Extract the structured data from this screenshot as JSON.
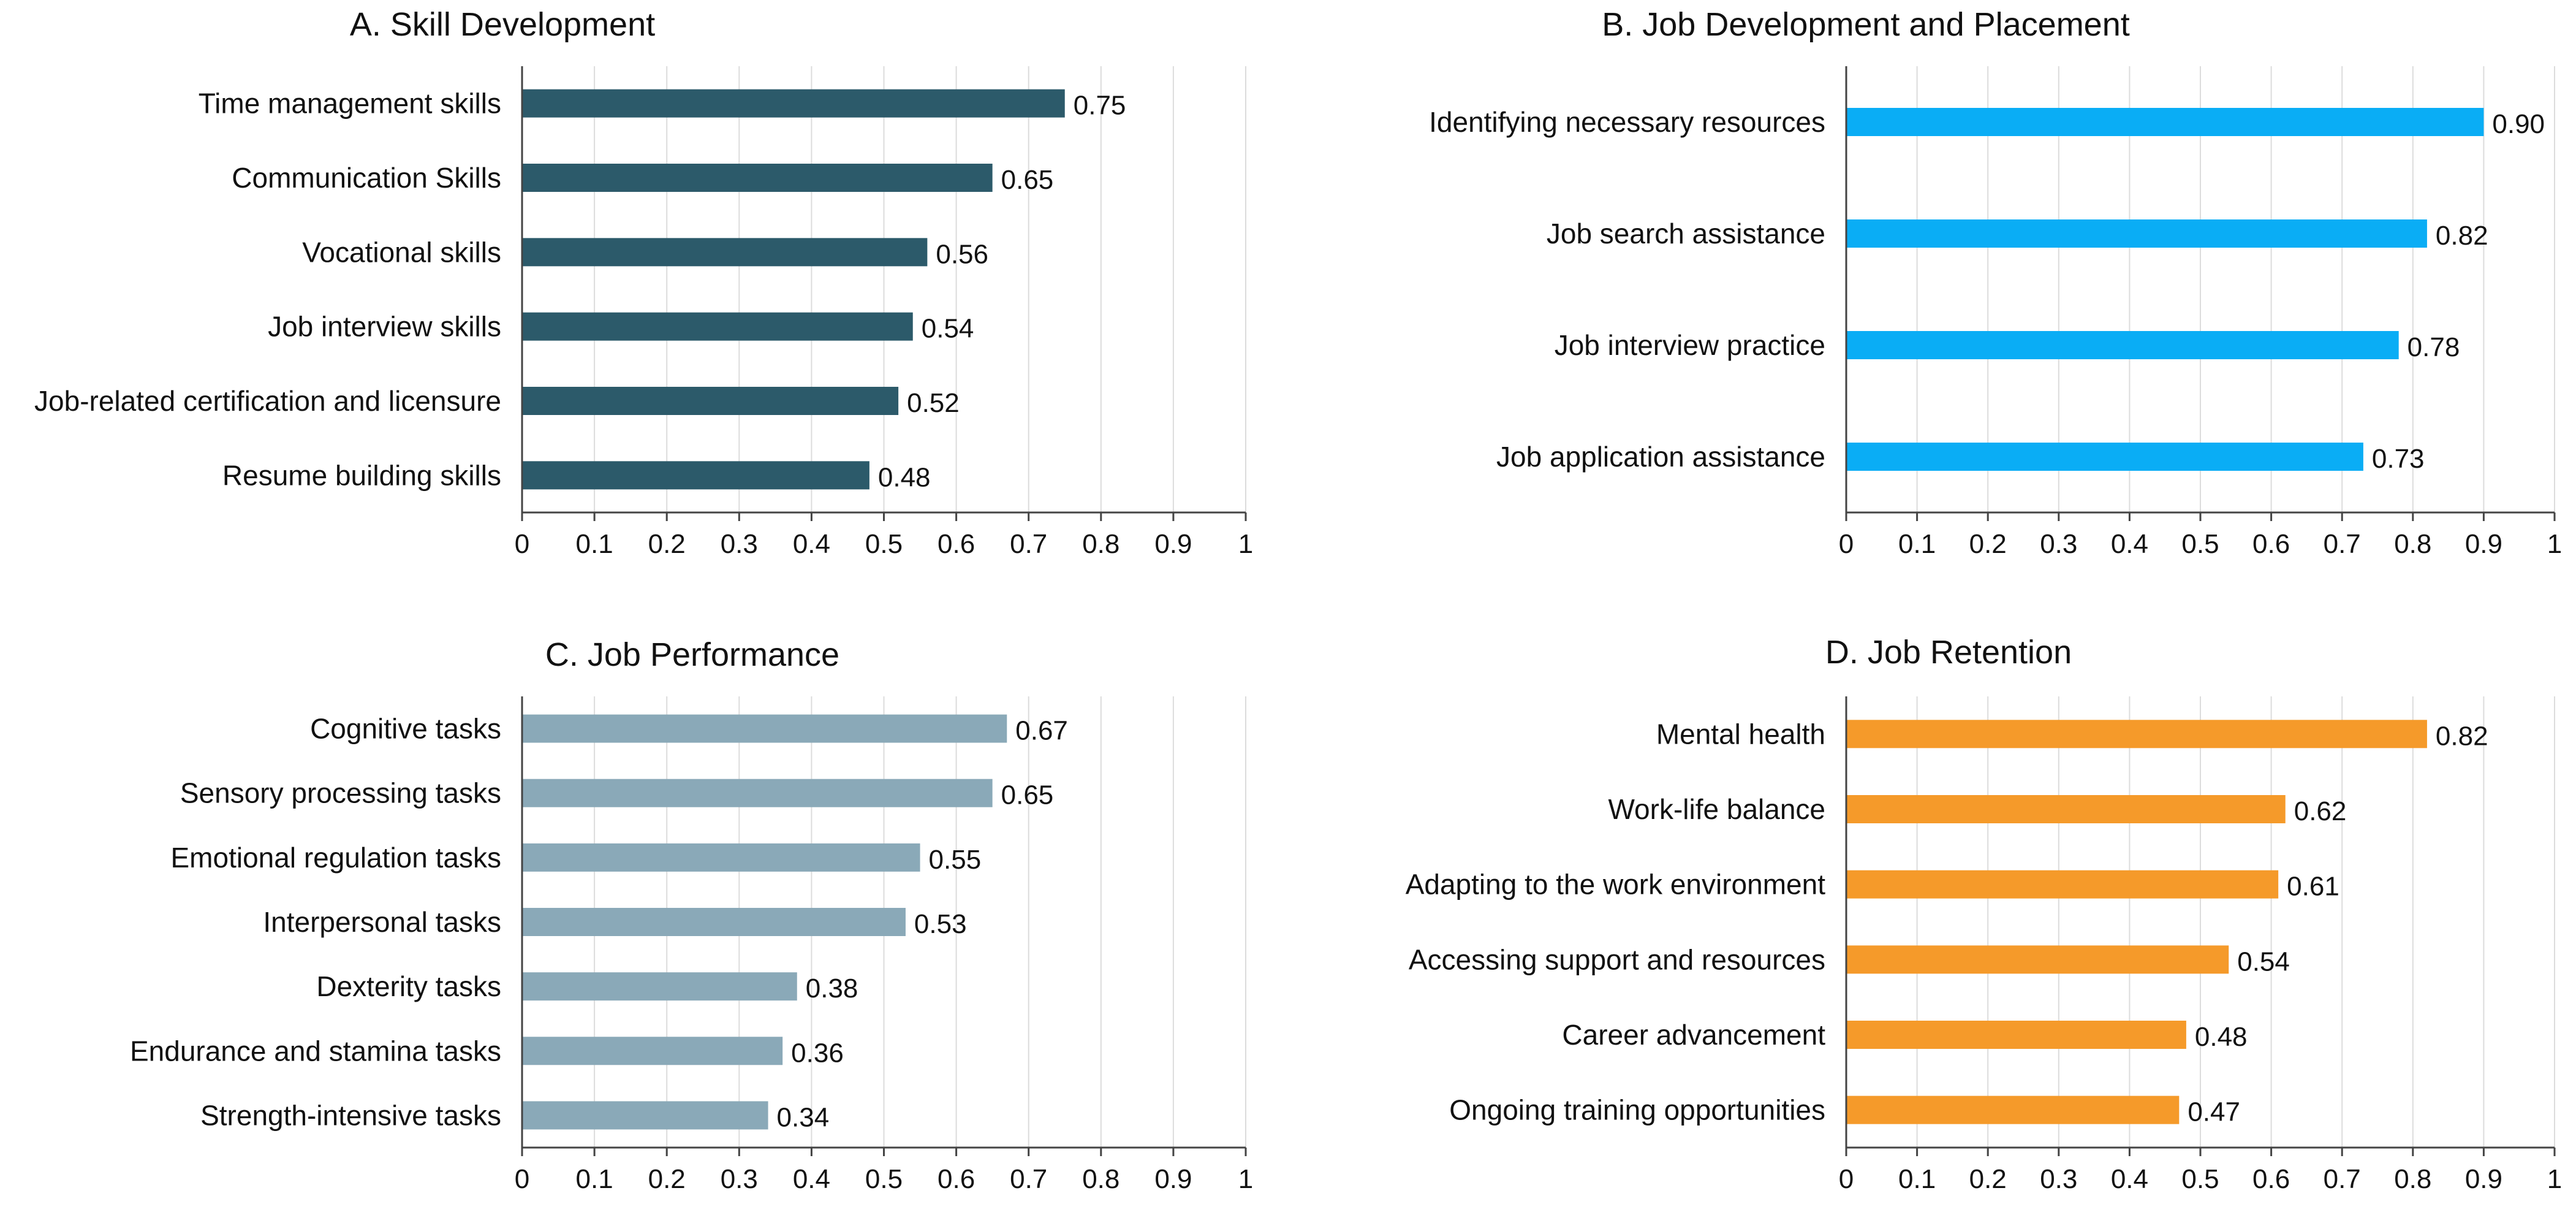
{
  "chart_data": [
    {
      "type": "bar",
      "orientation": "horizontal",
      "title": "A. Skill Development",
      "categories": [
        "Time management skills",
        "Communication Skills",
        "Vocational skills",
        "Job interview skills",
        "Job-related certification and licensure",
        "Resume building skills"
      ],
      "values": [
        0.75,
        0.65,
        0.56,
        0.54,
        0.52,
        0.48
      ],
      "value_labels": [
        "0.75",
        "0.65",
        "0.56",
        "0.54",
        "0.52",
        "0.48"
      ],
      "xlim": [
        0,
        1
      ],
      "ticks": [
        0,
        0.1,
        0.2,
        0.3,
        0.4,
        0.5,
        0.6,
        0.7,
        0.8,
        0.9,
        1
      ],
      "tick_labels": [
        "0",
        "0.1",
        "0.2",
        "0.3",
        "0.4",
        "0.5",
        "0.6",
        "0.7",
        "0.8",
        "0.9",
        "1"
      ],
      "color": "#2c5a6a",
      "grid": true
    },
    {
      "type": "bar",
      "orientation": "horizontal",
      "title": "B. Job Development and Placement",
      "categories": [
        "Identifying necessary resources",
        "Job search assistance",
        "Job interview practice",
        "Job application assistance"
      ],
      "values": [
        0.9,
        0.82,
        0.78,
        0.73
      ],
      "value_labels": [
        "0.90",
        "0.82",
        "0.78",
        "0.73"
      ],
      "xlim": [
        0,
        1
      ],
      "ticks": [
        0,
        0.1,
        0.2,
        0.3,
        0.4,
        0.5,
        0.6,
        0.7,
        0.8,
        0.9,
        1
      ],
      "tick_labels": [
        "0",
        "0.1",
        "0.2",
        "0.3",
        "0.4",
        "0.5",
        "0.6",
        "0.7",
        "0.8",
        "0.9",
        "1"
      ],
      "color": "#0aadf5",
      "grid": true
    },
    {
      "type": "bar",
      "orientation": "horizontal",
      "title": "C. Job Performance",
      "categories": [
        "Cognitive tasks",
        "Sensory processing tasks",
        "Emotional regulation tasks",
        "Interpersonal tasks",
        "Dexterity tasks",
        "Endurance and stamina tasks",
        "Strength-intensive tasks"
      ],
      "values": [
        0.67,
        0.65,
        0.55,
        0.53,
        0.38,
        0.36,
        0.34
      ],
      "value_labels": [
        "0.67",
        "0.65",
        "0.55",
        "0.53",
        "0.38",
        "0.36",
        "0.34"
      ],
      "xlim": [
        0,
        1
      ],
      "ticks": [
        0,
        0.1,
        0.2,
        0.3,
        0.4,
        0.5,
        0.6,
        0.7,
        0.8,
        0.9,
        1
      ],
      "tick_labels": [
        "0",
        "0.1",
        "0.2",
        "0.3",
        "0.4",
        "0.5",
        "0.6",
        "0.7",
        "0.8",
        "0.9",
        "1"
      ],
      "color": "#8aa9b8",
      "grid": true
    },
    {
      "type": "bar",
      "orientation": "horizontal",
      "title": "D. Job Retention",
      "categories": [
        "Mental health",
        "Work-life balance",
        "Adapting to the work environment",
        "Accessing support and resources",
        "Career advancement",
        "Ongoing training opportunities"
      ],
      "values": [
        0.82,
        0.62,
        0.61,
        0.54,
        0.48,
        0.47
      ],
      "value_labels": [
        "0.82",
        "0.62",
        "0.61",
        "0.54",
        "0.48",
        "0.47"
      ],
      "xlim": [
        0,
        1
      ],
      "ticks": [
        0,
        0.1,
        0.2,
        0.3,
        0.4,
        0.5,
        0.6,
        0.7,
        0.8,
        0.9,
        1
      ],
      "tick_labels": [
        "0",
        "0.1",
        "0.2",
        "0.3",
        "0.4",
        "0.5",
        "0.6",
        "0.7",
        "0.8",
        "0.9",
        "1"
      ],
      "color": "#f59a2a",
      "grid": true
    }
  ]
}
